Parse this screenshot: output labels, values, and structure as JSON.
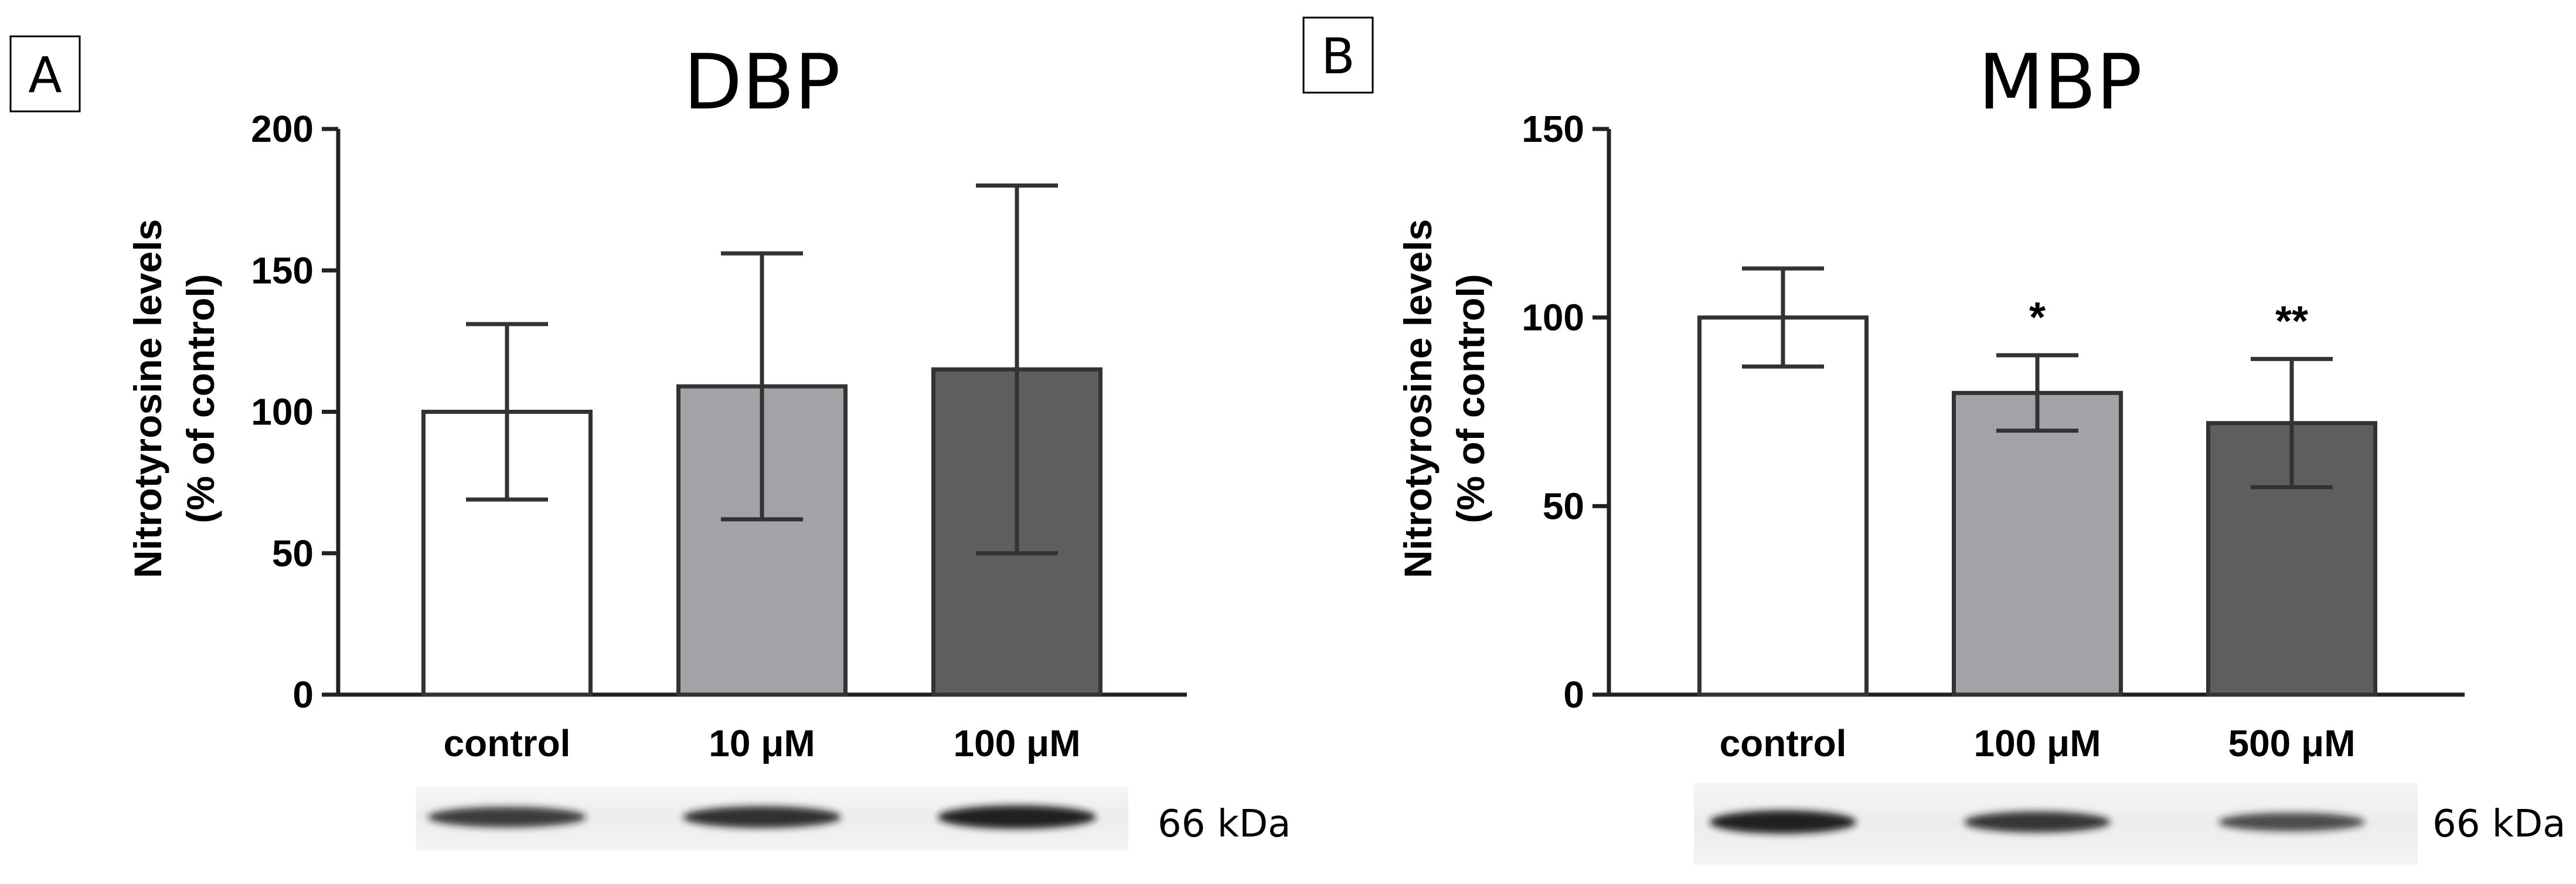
{
  "colors": {
    "axis": "#222222",
    "bar_outline": "#333333",
    "control_fill": "#ffffff",
    "low_fill": "#a3a3a7",
    "high_fill": "#5e5e5e",
    "blot_bg": "#ececec",
    "blot_band": "#151515"
  },
  "chart_data": [
    {
      "type": "bar",
      "panel": "A",
      "title": "DBP",
      "xlabel": "",
      "ylabel_line1": "Nitrotyrosine levels",
      "ylabel_line2": "(% of control)",
      "ylim": [
        0,
        200
      ],
      "yticks": [
        "0",
        "50",
        "100",
        "150",
        "200"
      ],
      "categories": [
        "control",
        "10 μM",
        "100 μM"
      ],
      "values": [
        100,
        109,
        115
      ],
      "errors": [
        31,
        47,
        65
      ],
      "significance": [
        "",
        "",
        ""
      ],
      "blot_label": "66 kDa",
      "blot_band_intensity": [
        0.75,
        0.85,
        1.0
      ]
    },
    {
      "type": "bar",
      "panel": "B",
      "title": "MBP",
      "xlabel": "",
      "ylabel_line1": "Nitrotyrosine levels",
      "ylabel_line2": "(% of control)",
      "ylim": [
        0,
        150
      ],
      "yticks": [
        "0",
        "50",
        "100",
        "150"
      ],
      "categories": [
        "control",
        "100 μM",
        "500 μM"
      ],
      "values": [
        100,
        80,
        72
      ],
      "errors": [
        13,
        10,
        17
      ],
      "significance": [
        "",
        "*",
        "**"
      ],
      "blot_label": "66 kDa",
      "blot_band_intensity": [
        1.0,
        0.8,
        0.6
      ]
    }
  ]
}
